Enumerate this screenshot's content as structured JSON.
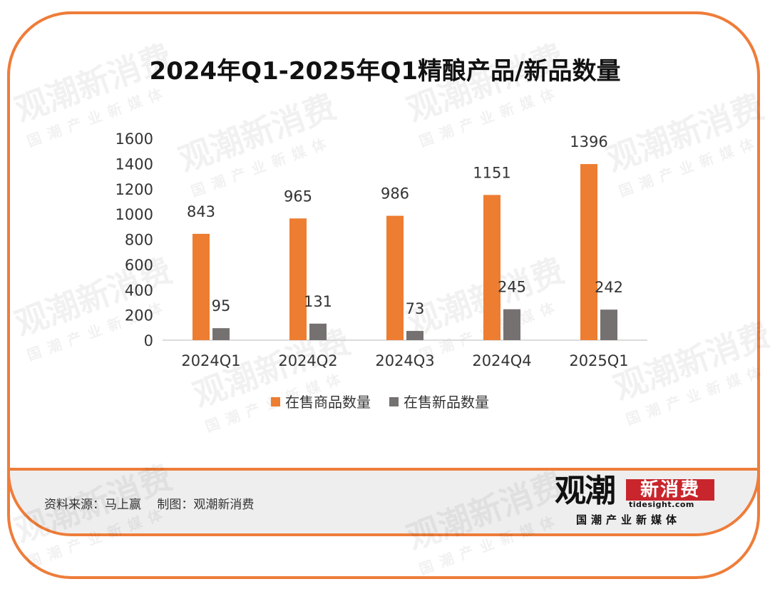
{
  "title": "2024年Q1-2025年Q1精酿产品/新品数量",
  "source_text": "资料来源：马上赢　 制图：观潮新消费",
  "logo": {
    "main_black": "观潮",
    "main_red": "新消费",
    "url": "tidesight.com",
    "tagline": "国潮产业新媒体"
  },
  "watermark": {
    "main": "观潮新消费",
    "url": "tidesight.com",
    "tagline": "国潮产业新媒体"
  },
  "colors": {
    "frame": "#ee7d3a",
    "series_on_sale": "#ed7d31",
    "series_new": "#767171"
  },
  "chart_data": {
    "type": "bar",
    "title": "2024年Q1-2025年Q1精酿产品/新品数量",
    "categories": [
      "2024Q1",
      "2024Q2",
      "2024Q3",
      "2024Q4",
      "2025Q1"
    ],
    "series": [
      {
        "name": "在售商品数量",
        "values": [
          843,
          965,
          986,
          1151,
          1396
        ],
        "color": "#ed7d31"
      },
      {
        "name": "在售新品数量",
        "values": [
          95,
          131,
          73,
          245,
          242
        ],
        "color": "#767171"
      }
    ],
    "y_ticks": [
      "0",
      "200",
      "400",
      "600",
      "800",
      "1000",
      "1200",
      "1400",
      "1600"
    ],
    "ylim": [
      0,
      1600
    ],
    "grid": false,
    "legend_position": "bottom",
    "data_labels": true
  }
}
